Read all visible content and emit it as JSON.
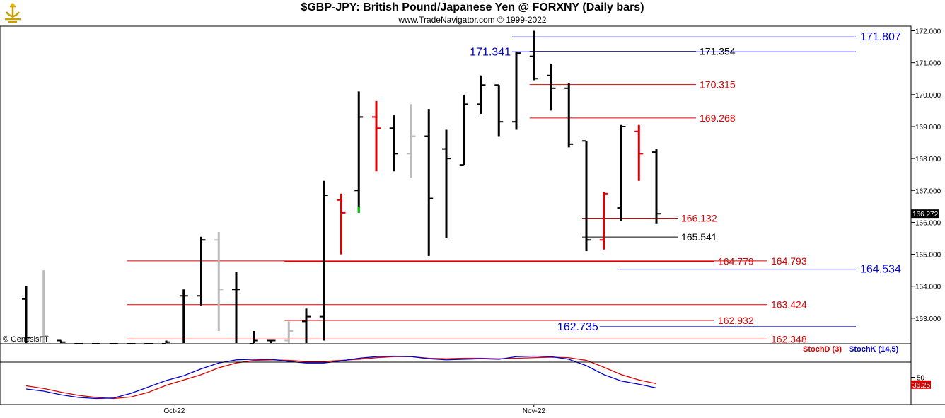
{
  "title": "$GBP-JPY:  British Pound/Japanese Yen @ FORXNY  (Daily bars)",
  "subtitle": "www.TradeNavigator.com © 1999-2022",
  "watermark": "© GenesisFT",
  "colors": {
    "up": "#000000",
    "down": "#dd0000",
    "grey": "#bbbbbb",
    "blue": "#0000cc",
    "red": "#dd0000",
    "green": "#00cc00"
  },
  "chart_data": [
    {
      "type": "ohlc",
      "title": "$GBP-JPY:  British Pound/Japanese Yen @ FORXNY  (Daily bars)",
      "y_ticks": [
        "172.000",
        "171.000",
        "170.000",
        "169.000",
        "168.000",
        "167.000",
        "166.000",
        "165.000",
        "164.000",
        "163.000"
      ],
      "ylim": [
        162.2,
        172.2
      ],
      "x_labels": [
        {
          "label": "Oct-22",
          "bar": 8.5
        },
        {
          "label": "Nov-22",
          "bar": 29
        }
      ],
      "last_price": "166.272",
      "bars": [
        {
          "o": 163.6,
          "h": 164.0,
          "l": 162.2,
          "c": 162.4,
          "col": "black"
        },
        {
          "o": 162.4,
          "h": 164.5,
          "l": 162.2,
          "c": 162.45,
          "col": "grey"
        },
        {
          "o": 162.3,
          "h": 162.3,
          "l": 162.2,
          "c": 162.25,
          "col": "black"
        },
        {
          "o": 162.2,
          "h": 162.2,
          "l": 162.2,
          "c": 162.2,
          "col": "black"
        },
        {
          "o": 162.2,
          "h": 162.2,
          "l": 162.2,
          "c": 162.2,
          "col": "black"
        },
        {
          "o": 162.2,
          "h": 162.2,
          "l": 162.2,
          "c": 162.2,
          "col": "black"
        },
        {
          "o": 162.2,
          "h": 162.2,
          "l": 162.2,
          "c": 162.2,
          "col": "black"
        },
        {
          "o": 162.2,
          "h": 162.2,
          "l": 162.2,
          "c": 162.2,
          "col": "black"
        },
        {
          "o": 162.2,
          "h": 162.3,
          "l": 162.2,
          "c": 162.25,
          "col": "black"
        },
        {
          "o": 163.7,
          "h": 163.9,
          "l": 162.2,
          "c": 163.7,
          "col": "black"
        },
        {
          "o": 163.7,
          "h": 165.55,
          "l": 163.4,
          "c": 165.45,
          "col": "black"
        },
        {
          "o": 165.45,
          "h": 165.7,
          "l": 162.6,
          "c": 163.9,
          "col": "grey"
        },
        {
          "o": 163.9,
          "h": 164.45,
          "l": 162.2,
          "c": 163.9,
          "col": "black"
        },
        {
          "o": 162.2,
          "h": 162.6,
          "l": 162.2,
          "c": 162.3,
          "col": "black"
        },
        {
          "o": 162.3,
          "h": 162.3,
          "l": 162.2,
          "c": 162.3,
          "col": "black"
        },
        {
          "o": 162.3,
          "h": 162.9,
          "l": 162.2,
          "c": 162.6,
          "col": "grey"
        },
        {
          "o": 162.9,
          "h": 163.3,
          "l": 162.2,
          "c": 163.05,
          "col": "black"
        },
        {
          "o": 163.05,
          "h": 167.3,
          "l": 162.3,
          "c": 166.85,
          "col": "black"
        },
        {
          "o": 166.7,
          "h": 166.9,
          "l": 165.0,
          "c": 166.3,
          "col": "red"
        },
        {
          "o": 167.0,
          "h": 170.1,
          "l": 166.3,
          "c": 169.3,
          "col": "black"
        },
        {
          "o": 169.3,
          "h": 169.8,
          "l": 167.6,
          "c": 168.95,
          "col": "red"
        },
        {
          "o": 168.95,
          "h": 169.35,
          "l": 167.6,
          "c": 168.15,
          "col": "black"
        },
        {
          "o": 168.15,
          "h": 169.7,
          "l": 167.4,
          "c": 168.7,
          "col": "grey"
        },
        {
          "o": 168.7,
          "h": 169.55,
          "l": 164.95,
          "c": 166.75,
          "col": "black"
        },
        {
          "o": 168.3,
          "h": 168.9,
          "l": 165.5,
          "c": 168.0,
          "col": "black"
        },
        {
          "o": 167.8,
          "h": 170.0,
          "l": 167.8,
          "c": 169.7,
          "col": "black"
        },
        {
          "o": 169.7,
          "h": 170.6,
          "l": 169.4,
          "c": 170.3,
          "col": "black"
        },
        {
          "o": 170.3,
          "h": 170.3,
          "l": 168.7,
          "c": 169.15,
          "col": "black"
        },
        {
          "o": 169.15,
          "h": 171.35,
          "l": 168.9,
          "c": 171.3,
          "col": "black"
        },
        {
          "o": 171.2,
          "h": 172.0,
          "l": 170.45,
          "c": 170.5,
          "col": "black"
        },
        {
          "o": 170.6,
          "h": 170.95,
          "l": 169.5,
          "c": 170.2,
          "col": "black"
        },
        {
          "o": 170.2,
          "h": 170.35,
          "l": 168.35,
          "c": 168.45,
          "col": "black"
        },
        {
          "o": 168.55,
          "h": 168.55,
          "l": 165.1,
          "c": 165.45,
          "col": "black"
        },
        {
          "o": 165.45,
          "h": 166.95,
          "l": 165.15,
          "c": 166.9,
          "col": "red"
        },
        {
          "o": 166.45,
          "h": 169.05,
          "l": 166.05,
          "c": 169.0,
          "col": "black"
        },
        {
          "o": 168.85,
          "h": 169.05,
          "l": 167.3,
          "c": 168.15,
          "col": "red"
        },
        {
          "o": 168.2,
          "h": 168.3,
          "l": 165.95,
          "c": 166.27,
          "col": "black"
        }
      ],
      "levels": [
        {
          "label": "171.807",
          "value": 171.807,
          "color": "blue",
          "from_bar": 28,
          "label_side": "right"
        },
        {
          "label": "171.341",
          "value": 171.341,
          "color": "blue",
          "from_bar": 28,
          "label_side": "left"
        },
        {
          "label": "171.354",
          "value": 171.354,
          "color": "black",
          "from_bar": 29,
          "label_side": "mid"
        },
        {
          "label": "170.315",
          "value": 170.315,
          "color": "red",
          "from_bar": 29,
          "label_side": "mid"
        },
        {
          "label": "169.268",
          "value": 169.268,
          "color": "red",
          "from_bar": 29,
          "label_side": "mid"
        },
        {
          "label": "166.132",
          "value": 166.132,
          "color": "red",
          "from_bar": 32,
          "label_side": "mid"
        },
        {
          "label": "165.541",
          "value": 165.541,
          "color": "black",
          "from_bar": 32,
          "label_side": "mid"
        },
        {
          "label": "164.779",
          "value": 164.779,
          "color": "red",
          "from_bar": 15,
          "label_side": "mid"
        },
        {
          "label": "164.793",
          "value": 164.793,
          "color": "red",
          "from_bar": 6,
          "label_side": "far"
        },
        {
          "label": "164.534",
          "value": 164.534,
          "color": "blue",
          "from_bar": 34,
          "label_side": "right"
        },
        {
          "label": "163.424",
          "value": 163.424,
          "color": "red",
          "from_bar": 6,
          "label_side": "far"
        },
        {
          "label": "162.932",
          "value": 162.932,
          "color": "red",
          "from_bar": 15,
          "label_side": "mid"
        },
        {
          "label": "162.735",
          "value": 162.735,
          "color": "blue",
          "from_bar": 33,
          "label_side": "left"
        },
        {
          "label": "162.348",
          "value": 162.348,
          "color": "red",
          "from_bar": 6,
          "label_side": "far"
        }
      ]
    },
    {
      "type": "line",
      "legend": [
        {
          "name": "StochD (3)",
          "color": "red"
        },
        {
          "name": "StochK (14,5)",
          "color": "blue"
        }
      ],
      "y_ticks": [
        "50"
      ],
      "last_value": "36.25",
      "ylim": [
        0,
        100
      ],
      "series": [
        {
          "name": "StochD (3)",
          "color": "red",
          "values": [
            34,
            29,
            22,
            16,
            12,
            10,
            13,
            22,
            35,
            45,
            55,
            68,
            77,
            82,
            83,
            82,
            80,
            80,
            82,
            84,
            87,
            89,
            89,
            86,
            85,
            86,
            86,
            85,
            86,
            87,
            88,
            87,
            82,
            69,
            55,
            45,
            38
          ]
        },
        {
          "name": "StochK (14,5)",
          "color": "blue",
          "values": [
            28,
            24,
            17,
            12,
            10,
            11,
            20,
            32,
            44,
            53,
            66,
            77,
            83,
            84,
            84,
            80,
            77,
            77,
            81,
            86,
            89,
            90,
            89,
            85,
            83,
            84,
            85,
            84,
            89,
            90,
            89,
            84,
            72,
            55,
            43,
            37,
            30
          ]
        }
      ]
    }
  ]
}
